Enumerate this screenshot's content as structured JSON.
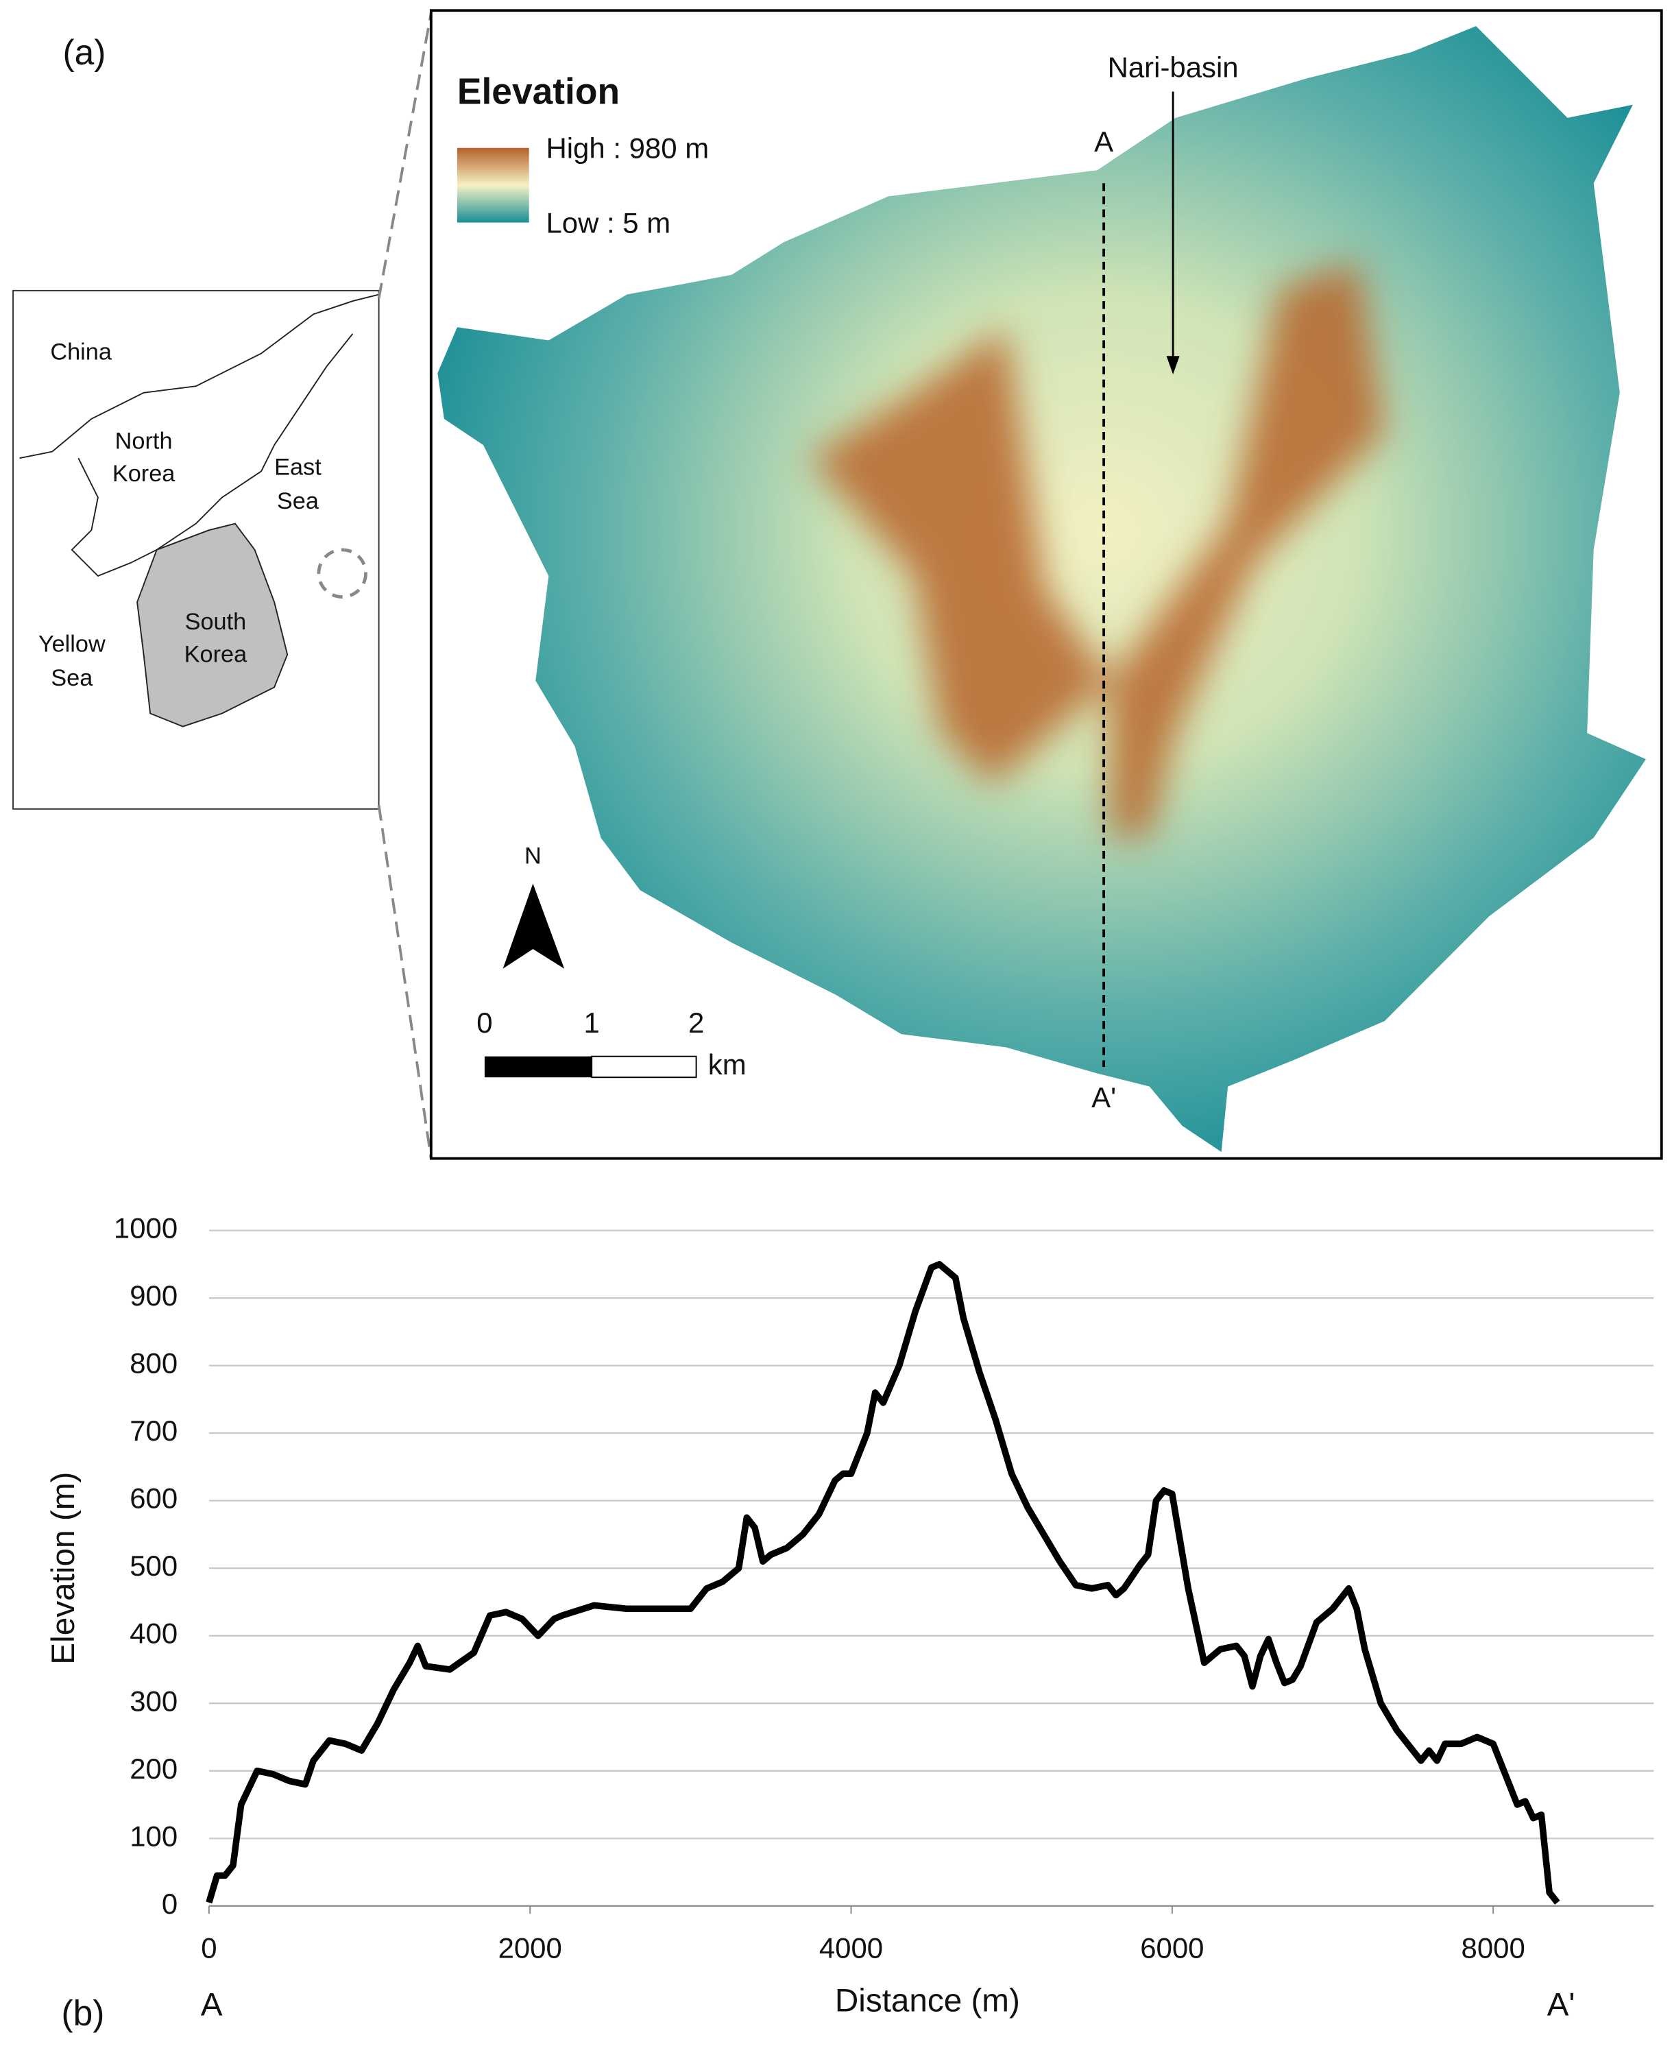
{
  "map": {
    "panel_label": "(a)",
    "legend_title": "Elevation",
    "legend_high": "High : 980 m",
    "legend_low": "Low : 5 m",
    "north": "N",
    "scale_labels": [
      "0",
      "1",
      "2"
    ],
    "scale_unit": "km",
    "section_start": "A",
    "section_end": "A'",
    "basin": "Nari-basin"
  },
  "inset": {
    "china": [
      "China"
    ],
    "north_korea": [
      "North",
      "Korea"
    ],
    "east_sea": [
      "East",
      "Sea"
    ],
    "yellow_sea": [
      "Yellow",
      "Sea"
    ],
    "south_korea": [
      "South",
      "Korea"
    ]
  },
  "chart_data": {
    "type": "line",
    "panel_label": "(b)",
    "x_label": "Distance (m)",
    "y_label": "Elevation (m)",
    "start_label": "A",
    "end_label": "A'",
    "color": "#000000",
    "grid": true,
    "x": [
      0,
      50,
      100,
      150,
      200,
      300,
      400,
      500,
      600,
      650,
      750,
      850,
      950,
      1050,
      1150,
      1250,
      1300,
      1350,
      1500,
      1650,
      1750,
      1850,
      1950,
      2050,
      2150,
      2200,
      2400,
      2600,
      2800,
      3000,
      3100,
      3200,
      3300,
      3350,
      3400,
      3450,
      3500,
      3600,
      3700,
      3800,
      3900,
      3950,
      4000,
      4100,
      4150,
      4200,
      4300,
      4400,
      4500,
      4550,
      4650,
      4700,
      4800,
      4900,
      5000,
      5100,
      5200,
      5300,
      5400,
      5500,
      5600,
      5650,
      5700,
      5800,
      5850,
      5900,
      5950,
      6000,
      6100,
      6200,
      6300,
      6400,
      6450,
      6500,
      6550,
      6600,
      6650,
      6700,
      6750,
      6800,
      6900,
      7000,
      7100,
      7150,
      7200,
      7300,
      7400,
      7500,
      7550,
      7600,
      7650,
      7700,
      7800,
      7900,
      8000,
      8050,
      8100,
      8150,
      8200,
      8250,
      8300,
      8350,
      8400
    ],
    "values": [
      5,
      45,
      45,
      60,
      150,
      200,
      195,
      185,
      180,
      215,
      245,
      240,
      230,
      270,
      320,
      360,
      385,
      355,
      350,
      375,
      430,
      435,
      425,
      400,
      425,
      430,
      445,
      440,
      440,
      440,
      470,
      480,
      500,
      575,
      560,
      510,
      520,
      530,
      550,
      580,
      630,
      640,
      640,
      700,
      760,
      745,
      800,
      880,
      945,
      950,
      930,
      870,
      790,
      720,
      640,
      590,
      550,
      510,
      475,
      470,
      475,
      460,
      470,
      505,
      520,
      600,
      615,
      610,
      470,
      360,
      380,
      385,
      370,
      325,
      370,
      395,
      360,
      330,
      335,
      355,
      420,
      440,
      470,
      440,
      380,
      300,
      260,
      230,
      215,
      230,
      215,
      240,
      240,
      250,
      240,
      210,
      180,
      150,
      155,
      130,
      135,
      20,
      5
    ],
    "xlim": [
      0,
      9000
    ],
    "ylim": [
      0,
      1000
    ],
    "xticks": [
      0,
      2000,
      4000,
      6000,
      8000
    ],
    "yticks": [
      0,
      100,
      200,
      300,
      400,
      500,
      600,
      700,
      800,
      900,
      1000
    ]
  }
}
